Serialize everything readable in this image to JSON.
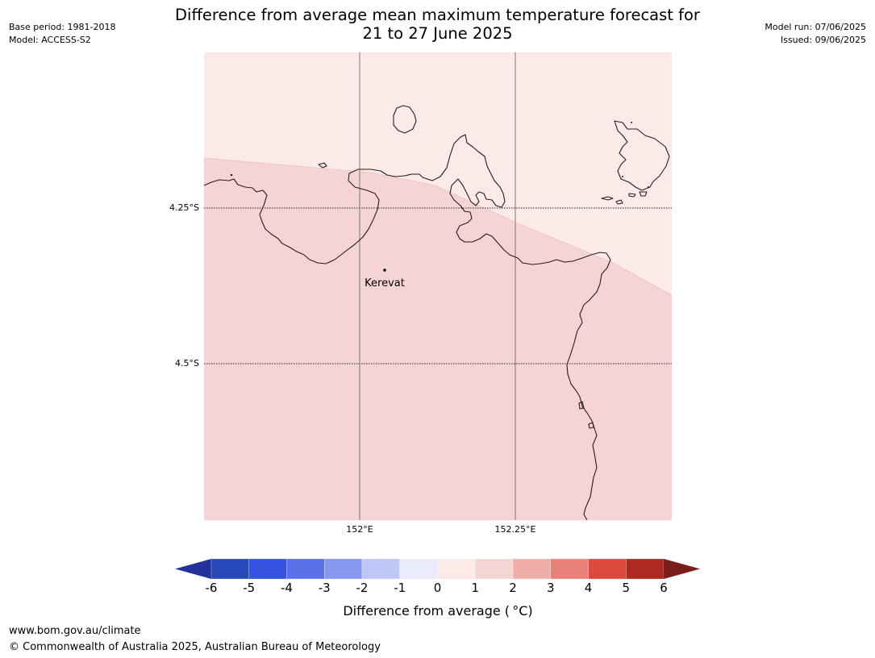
{
  "header": {
    "base_period": "Base period: 1981-2018",
    "model": "Model: ACCESS-S2",
    "model_run": "Model run: 07/06/2025",
    "issued": "Issued: 09/06/2025",
    "title_line1": "Difference from average mean maximum temperature forecast for",
    "title_line2": "21 to 27 June 2025"
  },
  "map": {
    "lat_labels": [
      "4.25°S",
      "4.5°S"
    ],
    "lon_labels": [
      "152°E",
      "152.25°E"
    ],
    "place": "Kerevat",
    "fill_colors": {
      "zero_to_one": "#fceae9",
      "one_to_two": "#f5d5d3"
    }
  },
  "colorbar": {
    "ticks": [
      "-6",
      "-5",
      "-4",
      "-3",
      "-2",
      "-1",
      "0",
      "1",
      "2",
      "3",
      "4",
      "5",
      "6"
    ],
    "colors": [
      "#24339a",
      "#2848ba",
      "#3352e0",
      "#5b6fe6",
      "#8697ee",
      "#c0c7f6",
      "#e9ebfd",
      "#fceae9",
      "#f5d5d3",
      "#efafa8",
      "#e7817a",
      "#dc4a3d",
      "#ad2a20",
      "#7b1d1a"
    ],
    "label": "Difference from average ( °C)"
  },
  "footer": {
    "url": "www.bom.gov.au/climate",
    "copyright": "© Commonwealth of Australia 2025, Australian Bureau of Meteorology"
  }
}
